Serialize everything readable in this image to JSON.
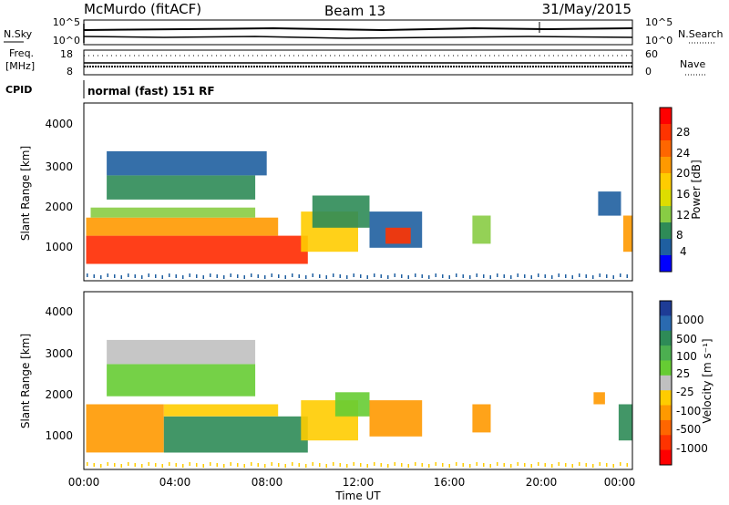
{
  "header": {
    "station": "McMurdo (fitACF)",
    "beam": "Beam 13",
    "date": "31/May/2015"
  },
  "status_panels": {
    "nsky_label": "N.Sky",
    "nsearch_label": "N.Search",
    "nsky_ticks": [
      "10^5",
      "10^0"
    ],
    "nsearch_ticks": [
      "10^5",
      "10^0"
    ],
    "freq_label_top": "Freq.",
    "freq_label_unit": "[MHz]",
    "freq_ticks": [
      "18",
      "8"
    ],
    "nave_label": "Nave",
    "nave_ticks": [
      "60",
      "0"
    ],
    "cpid_label": "CPID",
    "cpid_value": "normal (fast) 151 RF"
  },
  "colorbar_power": {
    "label": "Power [dB]",
    "ticks": [
      "28",
      "24",
      "20",
      "16",
      "12",
      "8",
      "4"
    ],
    "colors": [
      "#ff0000",
      "#ff3300",
      "#ff6600",
      "#ff9900",
      "#ffcc00",
      "#dddd00",
      "#88cc44",
      "#2e8b57",
      "#1f5fa0",
      "#0000ff"
    ]
  },
  "colorbar_velocity": {
    "label": "Velocity [m s⁻¹]",
    "ticks": [
      "1000",
      "500",
      "100",
      "25",
      "-25",
      "-100",
      "-500",
      "-1000"
    ],
    "colors": [
      "#1e3c96",
      "#2a6ab0",
      "#2e8b57",
      "#4caf50",
      "#66cc33",
      "#c0c0c0",
      "#ffcc00",
      "#ff9900",
      "#ff6600",
      "#ff3300",
      "#ff0000"
    ]
  },
  "chart_data": [
    {
      "type": "heatmap",
      "title": "Power",
      "ylabel": "Slant Range [km]",
      "xlabel": "",
      "yticks": [
        "4000",
        "3000",
        "2000",
        "1000"
      ],
      "ylim": [
        180,
        4600
      ],
      "xlim": [
        0,
        24
      ],
      "patches": [
        {
          "x0": 0.1,
          "x1": 9.8,
          "y0": 600,
          "y1": 1300,
          "color": "#ff2a00"
        },
        {
          "x0": 0.1,
          "x1": 8.5,
          "y0": 1300,
          "y1": 1750,
          "color": "#ff9900"
        },
        {
          "x0": 0.3,
          "x1": 7.5,
          "y0": 1750,
          "y1": 2000,
          "color": "#88cc44"
        },
        {
          "x0": 1.0,
          "x1": 7.5,
          "y0": 2200,
          "y1": 2800,
          "color": "#2e8b57"
        },
        {
          "x0": 1.0,
          "x1": 8.0,
          "y0": 2800,
          "y1": 3400,
          "color": "#1f5fa0"
        },
        {
          "x0": 9.5,
          "x1": 12.0,
          "y0": 900,
          "y1": 1900,
          "color": "#ffcc00"
        },
        {
          "x0": 10.0,
          "x1": 12.5,
          "y0": 1500,
          "y1": 2300,
          "color": "#2e8b57"
        },
        {
          "x0": 12.5,
          "x1": 14.8,
          "y0": 1000,
          "y1": 1900,
          "color": "#1f5fa0"
        },
        {
          "x0": 13.2,
          "x1": 14.3,
          "y0": 1100,
          "y1": 1500,
          "color": "#ff3300"
        },
        {
          "x0": 17.0,
          "x1": 17.8,
          "y0": 1100,
          "y1": 1800,
          "color": "#88cc44"
        },
        {
          "x0": 22.5,
          "x1": 23.5,
          "y0": 1800,
          "y1": 2400,
          "color": "#1f5fa0"
        },
        {
          "x0": 23.6,
          "x1": 24.0,
          "y0": 900,
          "y1": 1800,
          "color": "#ff9900"
        }
      ]
    },
    {
      "type": "heatmap",
      "title": "Velocity",
      "ylabel": "Slant Range [km]",
      "xlabel": "Time UT",
      "yticks": [
        "4000",
        "3000",
        "2000",
        "1000"
      ],
      "xticks": [
        "00:00",
        "04:00",
        "08:00",
        "12:00",
        "16:00",
        "20:00",
        "00:00"
      ],
      "ylim": [
        180,
        4600
      ],
      "xlim": [
        0,
        24
      ],
      "patches": [
        {
          "x0": 0.1,
          "x1": 3.5,
          "y0": 600,
          "y1": 1800,
          "color": "#ff9900"
        },
        {
          "x0": 3.5,
          "x1": 9.8,
          "y0": 600,
          "y1": 1500,
          "color": "#2e8b57"
        },
        {
          "x0": 3.5,
          "x1": 8.5,
          "y0": 1500,
          "y1": 1800,
          "color": "#ffcc00"
        },
        {
          "x0": 1.0,
          "x1": 7.5,
          "y0": 2000,
          "y1": 2800,
          "color": "#66cc33"
        },
        {
          "x0": 1.0,
          "x1": 7.5,
          "y0": 2800,
          "y1": 3400,
          "color": "#c0c0c0"
        },
        {
          "x0": 9.5,
          "x1": 12.0,
          "y0": 900,
          "y1": 1900,
          "color": "#ffcc00"
        },
        {
          "x0": 11.0,
          "x1": 12.5,
          "y0": 1500,
          "y1": 2100,
          "color": "#66cc33"
        },
        {
          "x0": 12.5,
          "x1": 14.8,
          "y0": 1000,
          "y1": 1900,
          "color": "#ff9900"
        },
        {
          "x0": 17.0,
          "x1": 17.8,
          "y0": 1100,
          "y1": 1800,
          "color": "#ff9900"
        },
        {
          "x0": 22.3,
          "x1": 22.8,
          "y0": 1800,
          "y1": 2100,
          "color": "#ff9900"
        },
        {
          "x0": 23.4,
          "x1": 24.0,
          "y0": 900,
          "y1": 1800,
          "color": "#2e8b57"
        }
      ]
    }
  ]
}
